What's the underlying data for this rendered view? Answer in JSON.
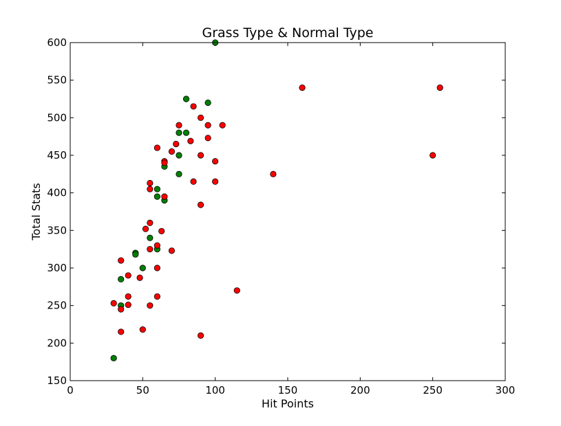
{
  "chart_data": {
    "type": "scatter",
    "title": "Grass Type & Normal Type",
    "xlabel": "Hit Points",
    "ylabel": "Total Stats",
    "xlim": [
      0,
      300
    ],
    "ylim": [
      150,
      600
    ],
    "xticks": [
      0,
      50,
      100,
      150,
      200,
      250,
      300
    ],
    "yticks": [
      150,
      200,
      250,
      300,
      350,
      400,
      450,
      500,
      550,
      600
    ],
    "grid": false,
    "legend": "none",
    "series": [
      {
        "color": "#008000",
        "points": [
          [
            100,
            600
          ],
          [
            80,
            525
          ],
          [
            95,
            520
          ],
          [
            75,
            480
          ],
          [
            80,
            480
          ],
          [
            75,
            450
          ],
          [
            65,
            435
          ],
          [
            75,
            425
          ],
          [
            60,
            405
          ],
          [
            60,
            395
          ],
          [
            65,
            390
          ],
          [
            55,
            340
          ],
          [
            60,
            325
          ],
          [
            45,
            320
          ],
          [
            45,
            318
          ],
          [
            50,
            300
          ],
          [
            35,
            285
          ],
          [
            35,
            250
          ],
          [
            30,
            180
          ]
        ]
      },
      {
        "color": "#ff0000",
        "points": [
          [
            160,
            540
          ],
          [
            255,
            540
          ],
          [
            85,
            515
          ],
          [
            90,
            500
          ],
          [
            75,
            490
          ],
          [
            95,
            490
          ],
          [
            105,
            490
          ],
          [
            95,
            473
          ],
          [
            83,
            469
          ],
          [
            73,
            465
          ],
          [
            60,
            460
          ],
          [
            70,
            455
          ],
          [
            90,
            450
          ],
          [
            250,
            450
          ],
          [
            65,
            442
          ],
          [
            65,
            440
          ],
          [
            100,
            442
          ],
          [
            140,
            425
          ],
          [
            55,
            413
          ],
          [
            85,
            415
          ],
          [
            100,
            415
          ],
          [
            55,
            405
          ],
          [
            65,
            395
          ],
          [
            90,
            384
          ],
          [
            55,
            360
          ],
          [
            52,
            352
          ],
          [
            63,
            349
          ],
          [
            60,
            330
          ],
          [
            55,
            325
          ],
          [
            70,
            323
          ],
          [
            35,
            310
          ],
          [
            60,
            300
          ],
          [
            40,
            290
          ],
          [
            48,
            287
          ],
          [
            115,
            270
          ],
          [
            40,
            262
          ],
          [
            60,
            262
          ],
          [
            30,
            253
          ],
          [
            40,
            251
          ],
          [
            55,
            250
          ],
          [
            35,
            245
          ],
          [
            50,
            218
          ],
          [
            35,
            215
          ],
          [
            90,
            210
          ]
        ]
      }
    ]
  }
}
